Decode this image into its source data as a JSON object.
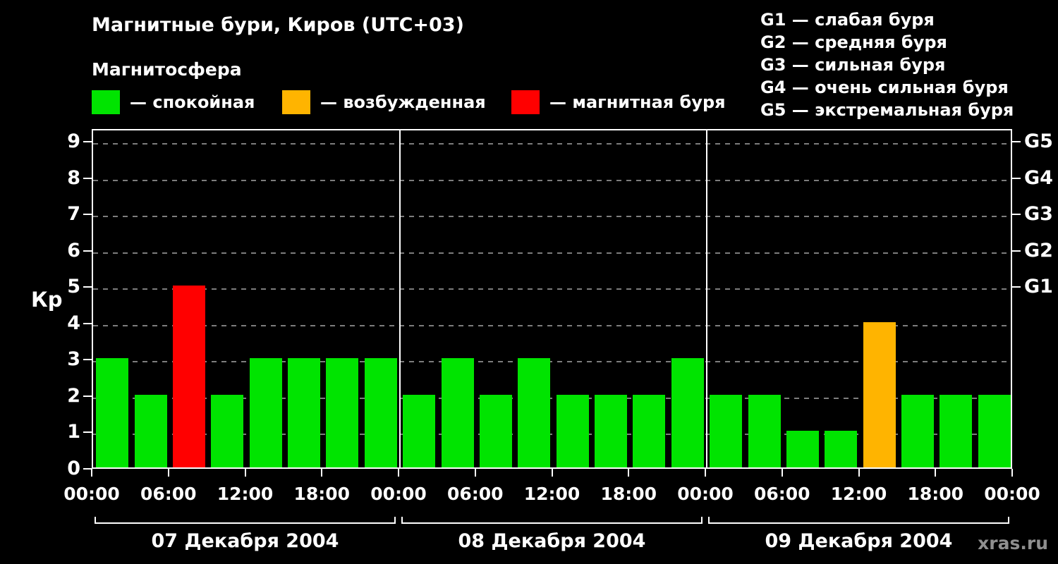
{
  "header": {
    "title": "Магнитные бури, Киров (UTC+03)",
    "subtitle": "Магнитосфера",
    "legend": [
      {
        "key": "quiet",
        "label": "— спокойная",
        "color": "#00e400"
      },
      {
        "key": "active",
        "label": "— возбужденная",
        "color": "#ffb400"
      },
      {
        "key": "storm",
        "label": "— магнитная буря",
        "color": "#ff0000"
      }
    ],
    "storm_scale": [
      "G1 — слабая буря",
      "G2 — средняя буря",
      "G3 — сильная буря",
      "G4 — очень сильная буря",
      "G5 — экстремальная буря"
    ]
  },
  "watermark": "xras.ru",
  "chart_data": {
    "type": "bar",
    "title": "Магнитные бури, Киров (UTC+03)",
    "ylabel": "Кр",
    "ylim": [
      0,
      9
    ],
    "yticks": [
      0,
      1,
      2,
      3,
      4,
      5,
      6,
      7,
      8,
      9
    ],
    "right_axis": [
      {
        "value": 5,
        "label": "G1"
      },
      {
        "value": 6,
        "label": "G2"
      },
      {
        "value": 7,
        "label": "G3"
      },
      {
        "value": 8,
        "label": "G4"
      },
      {
        "value": 9,
        "label": "G5"
      }
    ],
    "x_tick_labels": [
      "00:00",
      "06:00",
      "12:00",
      "18:00",
      "00:00",
      "06:00",
      "12:00",
      "18:00",
      "00:00",
      "06:00",
      "12:00",
      "18:00",
      "00:00"
    ],
    "days": [
      {
        "label": "07 Декабря 2004",
        "values": [
          3,
          2,
          5,
          2,
          3,
          3,
          3,
          3
        ]
      },
      {
        "label": "08 Декабря 2004",
        "values": [
          2,
          3,
          2,
          3,
          2,
          2,
          2,
          3
        ]
      },
      {
        "label": "09 Декабря 2004",
        "values": [
          2,
          2,
          1,
          1,
          4,
          2,
          2,
          2
        ]
      }
    ],
    "interval_hours": 3,
    "colors": {
      "quiet": "#00e400",
      "active": "#ffb400",
      "storm": "#ff0000"
    },
    "color_thresholds": {
      "active_min": 4,
      "storm_min": 5
    },
    "grid": true,
    "legend_position": "top"
  }
}
